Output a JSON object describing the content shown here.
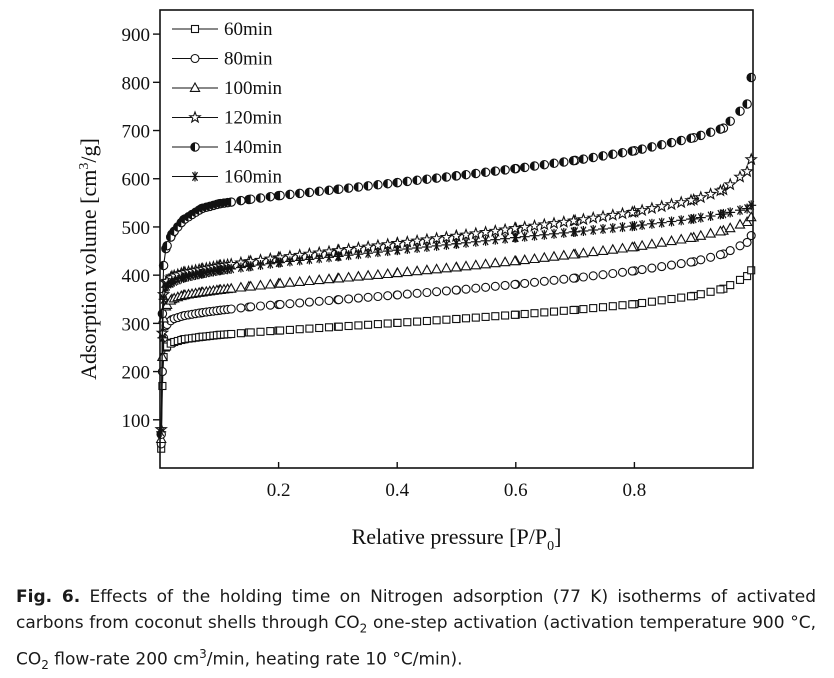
{
  "chart_data": {
    "type": "scatter",
    "xlabel_main": "Relative pressure [P/P",
    "xlabel_sub": "0",
    "xlabel_end": "]",
    "ylabel_main": "Adsorption volume [cm",
    "ylabel_sup": "3",
    "ylabel_end": "/g]",
    "xlim": [
      0.0,
      1.0
    ],
    "ylim": [
      0,
      950
    ],
    "x_ticks": [
      0.2,
      0.4,
      0.6,
      0.8
    ],
    "x_tick_labels": [
      "0.2",
      "0.4",
      "0.6",
      "0.8"
    ],
    "y_ticks": [
      100,
      200,
      300,
      400,
      500,
      600,
      700,
      800,
      900
    ],
    "y_tick_labels": [
      "100",
      "200",
      "300",
      "400",
      "500",
      "600",
      "700",
      "800",
      "900"
    ],
    "legend_position": "top-left",
    "series": [
      {
        "name": "60min",
        "marker": "square",
        "points": [
          [
            0.002,
            40
          ],
          [
            0.004,
            170
          ],
          [
            0.006,
            230
          ],
          [
            0.01,
            250
          ],
          [
            0.02,
            260
          ],
          [
            0.04,
            267
          ],
          [
            0.07,
            272
          ],
          [
            0.1,
            276
          ],
          [
            0.15,
            281
          ],
          [
            0.2,
            285
          ],
          [
            0.3,
            293
          ],
          [
            0.4,
            301
          ],
          [
            0.5,
            309
          ],
          [
            0.6,
            318
          ],
          [
            0.7,
            328
          ],
          [
            0.8,
            340
          ],
          [
            0.9,
            357
          ],
          [
            0.95,
            372
          ],
          [
            0.99,
            398
          ],
          [
            0.997,
            410
          ]
        ]
      },
      {
        "name": "80min",
        "marker": "circle",
        "points": [
          [
            0.002,
            50
          ],
          [
            0.004,
            200
          ],
          [
            0.006,
            270
          ],
          [
            0.01,
            295
          ],
          [
            0.02,
            308
          ],
          [
            0.04,
            316
          ],
          [
            0.07,
            322
          ],
          [
            0.1,
            327
          ],
          [
            0.15,
            334
          ],
          [
            0.2,
            339
          ],
          [
            0.3,
            349
          ],
          [
            0.4,
            359
          ],
          [
            0.5,
            369
          ],
          [
            0.6,
            381
          ],
          [
            0.7,
            394
          ],
          [
            0.8,
            409
          ],
          [
            0.9,
            428
          ],
          [
            0.95,
            444
          ],
          [
            0.99,
            468
          ],
          [
            0.997,
            482
          ]
        ]
      },
      {
        "name": "100min",
        "marker": "triangle",
        "points": [
          [
            0.002,
            60
          ],
          [
            0.004,
            230
          ],
          [
            0.006,
            310
          ],
          [
            0.01,
            335
          ],
          [
            0.02,
            350
          ],
          [
            0.04,
            358
          ],
          [
            0.07,
            364
          ],
          [
            0.1,
            369
          ],
          [
            0.15,
            376
          ],
          [
            0.2,
            382
          ],
          [
            0.3,
            393
          ],
          [
            0.4,
            404
          ],
          [
            0.5,
            416
          ],
          [
            0.6,
            429
          ],
          [
            0.7,
            443
          ],
          [
            0.8,
            458
          ],
          [
            0.9,
            478
          ],
          [
            0.95,
            492
          ],
          [
            0.99,
            510
          ],
          [
            0.997,
            520
          ]
        ]
      },
      {
        "name": "120min",
        "marker": "star",
        "points": [
          [
            0.002,
            80
          ],
          [
            0.004,
            280
          ],
          [
            0.006,
            360
          ],
          [
            0.01,
            385
          ],
          [
            0.02,
            397
          ],
          [
            0.04,
            405
          ],
          [
            0.07,
            412
          ],
          [
            0.1,
            419
          ],
          [
            0.15,
            428
          ],
          [
            0.2,
            436
          ],
          [
            0.3,
            451
          ],
          [
            0.4,
            466
          ],
          [
            0.5,
            481
          ],
          [
            0.6,
            497
          ],
          [
            0.7,
            513
          ],
          [
            0.8,
            531
          ],
          [
            0.9,
            556
          ],
          [
            0.95,
            577
          ],
          [
            0.99,
            615
          ],
          [
            0.997,
            640
          ]
        ]
      },
      {
        "name": "140min",
        "marker": "half-circle",
        "points": [
          [
            0.002,
            70
          ],
          [
            0.004,
            320
          ],
          [
            0.006,
            420
          ],
          [
            0.01,
            455
          ],
          [
            0.02,
            485
          ],
          [
            0.04,
            515
          ],
          [
            0.07,
            538
          ],
          [
            0.1,
            548
          ],
          [
            0.15,
            557
          ],
          [
            0.2,
            565
          ],
          [
            0.3,
            578
          ],
          [
            0.4,
            592
          ],
          [
            0.5,
            606
          ],
          [
            0.6,
            621
          ],
          [
            0.7,
            638
          ],
          [
            0.8,
            658
          ],
          [
            0.9,
            685
          ],
          [
            0.95,
            705
          ],
          [
            0.99,
            755
          ],
          [
            0.997,
            810
          ]
        ]
      },
      {
        "name": "160min",
        "marker": "asterisk",
        "points": [
          [
            0.002,
            75
          ],
          [
            0.004,
            270
          ],
          [
            0.006,
            350
          ],
          [
            0.01,
            375
          ],
          [
            0.02,
            385
          ],
          [
            0.04,
            395
          ],
          [
            0.07,
            403
          ],
          [
            0.1,
            410
          ],
          [
            0.15,
            418
          ],
          [
            0.2,
            426
          ],
          [
            0.3,
            439
          ],
          [
            0.4,
            452
          ],
          [
            0.5,
            465
          ],
          [
            0.6,
            478
          ],
          [
            0.7,
            490
          ],
          [
            0.8,
            502
          ],
          [
            0.9,
            517
          ],
          [
            0.95,
            527
          ],
          [
            0.99,
            538
          ],
          [
            0.997,
            545
          ]
        ]
      }
    ]
  },
  "caption": {
    "label": "Fig. 6.",
    "text_1": " Effects of the holding time on Nitrogen adsorption (77 K) isotherms of activated carbons from coconut shells through CO",
    "sub_1": "2",
    "text_2": " one-step activation (activation temperature 900 °C, CO",
    "sub_2": "2",
    "text_3": " flow-rate 200 cm",
    "sup_1": "3",
    "text_4": "/min, heating rate 10 °C/min)."
  }
}
